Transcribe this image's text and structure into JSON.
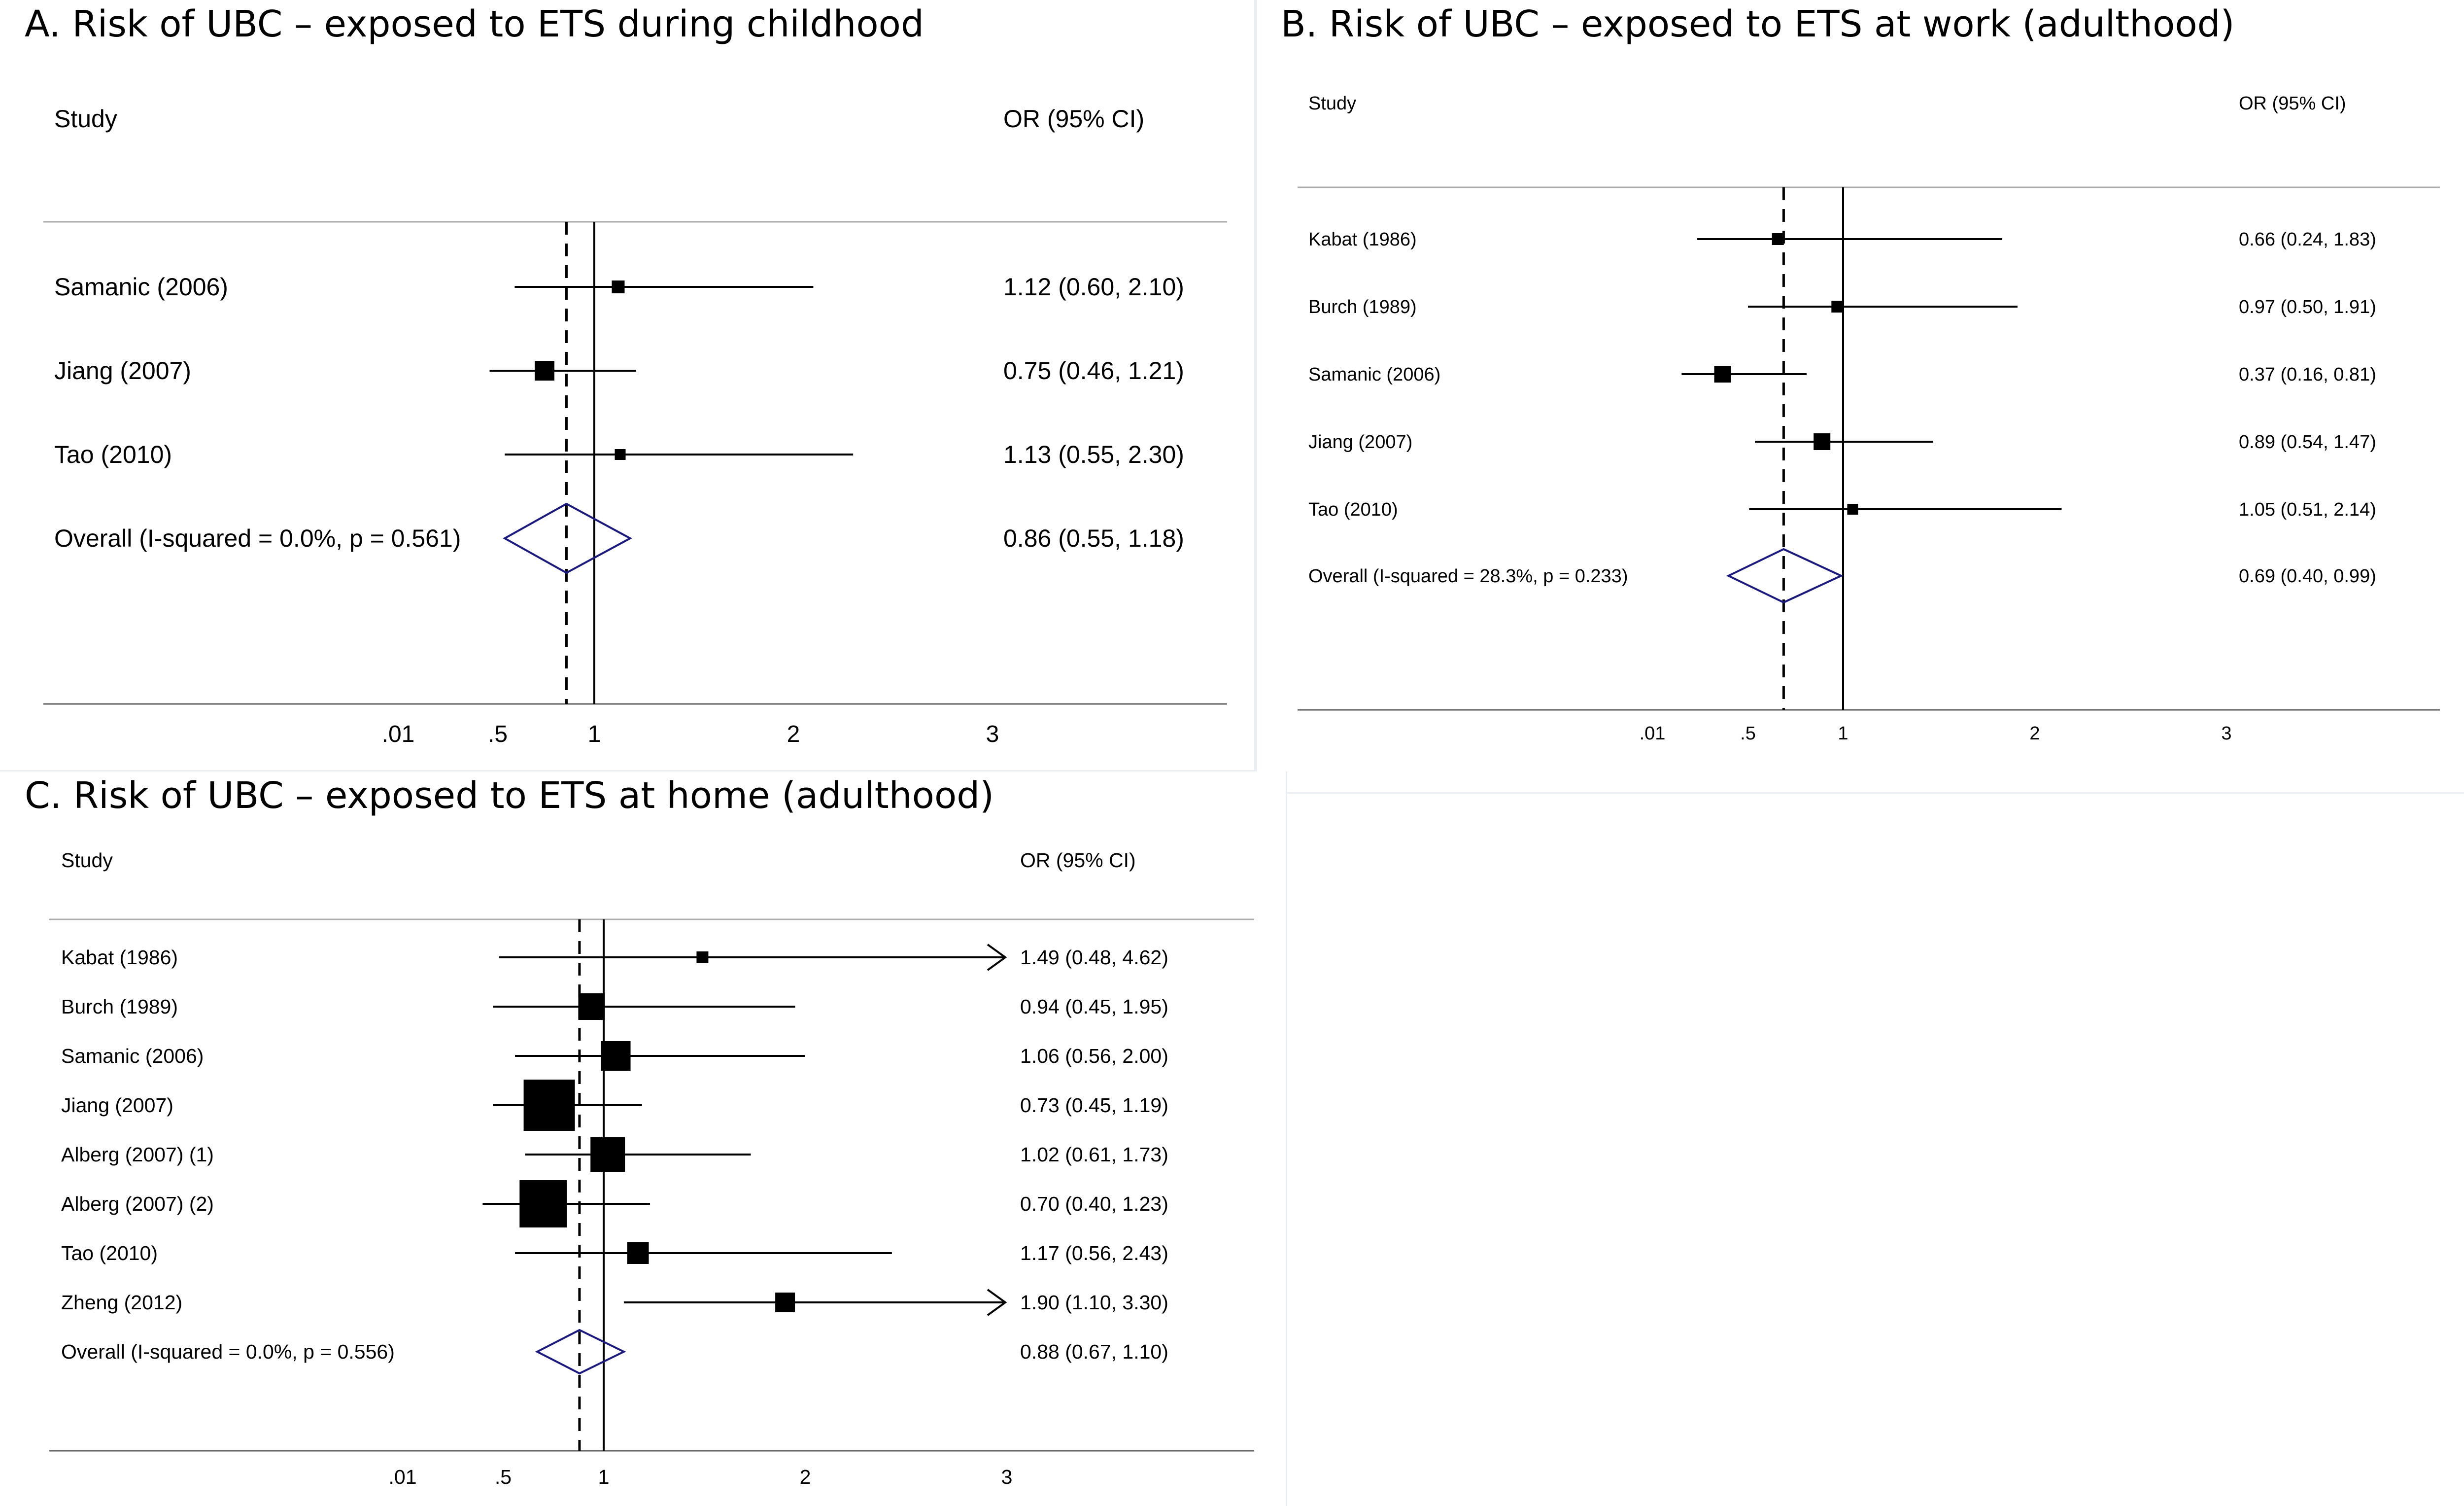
{
  "panels": {
    "a": {
      "title": "A. Risk of UBC – exposed to ETS during childhood"
    },
    "b": {
      "title": "B. Risk of UBC – exposed to ETS at work (adulthood)"
    },
    "c": {
      "title": "C. Risk of UBC – exposed to ETS at home (adulthood)"
    }
  },
  "colors": {
    "marker": "#000000",
    "line": "#000000",
    "diamond": "#1a1a80",
    "axis": "#666666",
    "separator": "#aaaaaa"
  },
  "chart_data": [
    {
      "type": "forest",
      "title": "A. Risk of UBC – exposed to ETS during childhood",
      "column_headers": {
        "study": "Study",
        "estimate": "OR (95% CI)"
      },
      "x_ticks": [
        ".01",
        ".5",
        "1",
        "2",
        "3"
      ],
      "reference_line": 1,
      "rows": [
        {
          "study": "Samanic (2006)",
          "or": 1.12,
          "lower": 0.6,
          "upper": 2.1,
          "label": "1.12 (0.60, 2.10)"
        },
        {
          "study": "Jiang (2007)",
          "or": 0.75,
          "lower": 0.46,
          "upper": 1.21,
          "label": "0.75 (0.46, 1.21)"
        },
        {
          "study": "Tao (2010)",
          "or": 1.13,
          "lower": 0.55,
          "upper": 2.3,
          "label": "1.13 (0.55, 2.30)"
        }
      ],
      "overall": {
        "study": "Overall  (I-squared = 0.0%, p = 0.561)",
        "or": 0.86,
        "lower": 0.55,
        "upper": 1.18,
        "label": "0.86 (0.55, 1.18)"
      }
    },
    {
      "type": "forest",
      "title": "B. Risk of UBC – exposed to ETS at work (adulthood)",
      "column_headers": {
        "study": "Study",
        "estimate": "OR (95% CI)"
      },
      "x_ticks": [
        ".01",
        ".5",
        "1",
        "2",
        "3"
      ],
      "reference_line": 1,
      "rows": [
        {
          "study": "Kabat (1986)",
          "or": 0.66,
          "lower": 0.24,
          "upper": 1.83,
          "label": "0.66 (0.24, 1.83)"
        },
        {
          "study": "Burch (1989)",
          "or": 0.97,
          "lower": 0.5,
          "upper": 1.91,
          "label": "0.97 (0.50, 1.91)"
        },
        {
          "study": "Samanic (2006)",
          "or": 0.37,
          "lower": 0.16,
          "upper": 0.81,
          "label": "0.37 (0.16, 0.81)"
        },
        {
          "study": "Jiang (2007)",
          "or": 0.89,
          "lower": 0.54,
          "upper": 1.47,
          "label": "0.89 (0.54, 1.47)"
        },
        {
          "study": "Tao (2010)",
          "or": 1.05,
          "lower": 0.51,
          "upper": 2.14,
          "label": "1.05 (0.51, 2.14)"
        }
      ],
      "overall": {
        "study": "Overall  (I-squared = 28.3%, p = 0.233)",
        "or": 0.69,
        "lower": 0.4,
        "upper": 0.99,
        "label": "0.69 (0.40, 0.99)"
      }
    },
    {
      "type": "forest",
      "title": "C. Risk of UBC – exposed to ETS at home (adulthood)",
      "column_headers": {
        "study": "Study",
        "estimate": "OR (95% CI)"
      },
      "x_ticks": [
        ".01",
        ".5",
        "1",
        "2",
        "3"
      ],
      "reference_line": 1,
      "rows": [
        {
          "study": "Kabat (1986)",
          "or": 1.49,
          "lower": 0.48,
          "upper": 4.62,
          "label": "1.49 (0.48, 4.62)",
          "arrow": true
        },
        {
          "study": "Burch (1989)",
          "or": 0.94,
          "lower": 0.45,
          "upper": 1.95,
          "label": "0.94 (0.45, 1.95)"
        },
        {
          "study": "Samanic (2006)",
          "or": 1.06,
          "lower": 0.56,
          "upper": 2.0,
          "label": "1.06 (0.56, 2.00)"
        },
        {
          "study": "Jiang (2007)",
          "or": 0.73,
          "lower": 0.45,
          "upper": 1.19,
          "label": "0.73 (0.45, 1.19)"
        },
        {
          "study": "Alberg (2007) (1)",
          "or": 1.02,
          "lower": 0.61,
          "upper": 1.73,
          "label": "1.02 (0.61, 1.73)"
        },
        {
          "study": "Alberg (2007) (2)",
          "or": 0.7,
          "lower": 0.4,
          "upper": 1.23,
          "label": "0.70 (0.40, 1.23)"
        },
        {
          "study": "Tao (2010)",
          "or": 1.17,
          "lower": 0.56,
          "upper": 2.43,
          "label": "1.17 (0.56, 2.43)"
        },
        {
          "study": "Zheng (2012)",
          "or": 1.9,
          "lower": 1.1,
          "upper": 3.3,
          "label": "1.90 (1.10, 3.30)",
          "arrow": true
        }
      ],
      "overall": {
        "study": "Overall  (I-squared = 0.0%, p = 0.556)",
        "or": 0.88,
        "lower": 0.67,
        "upper": 1.1,
        "label": "0.88 (0.67, 1.10)"
      }
    }
  ]
}
